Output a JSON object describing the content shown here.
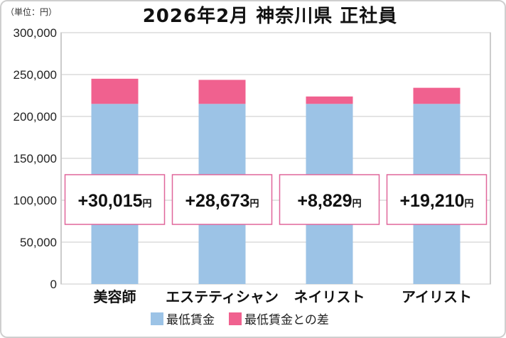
{
  "chart_data": {
    "type": "bar",
    "stacked": true,
    "title": "2026年2月 神奈川県 正社員",
    "unit_label": "（単位：円）",
    "categories": [
      "美容師",
      "エステティシャン",
      "ネイリスト",
      "アイリスト"
    ],
    "series": [
      {
        "name": "最低賃金",
        "values": [
          215000,
          215000,
          215000,
          215000
        ],
        "color": "#9cc3e6"
      },
      {
        "name": "最低賃金との差",
        "values": [
          30015,
          28673,
          8829,
          19210
        ],
        "color": "#f0618f"
      }
    ],
    "difference_labels": [
      "+30,015",
      "+28,673",
      "+8,829",
      "+19,210"
    ],
    "difference_unit": "円",
    "ylim": [
      0,
      300000
    ],
    "yticks": [
      "0",
      "50,000",
      "100,000",
      "150,000",
      "200,000",
      "250,000",
      "300,000"
    ],
    "grid": true,
    "legend_position": "bottom"
  }
}
